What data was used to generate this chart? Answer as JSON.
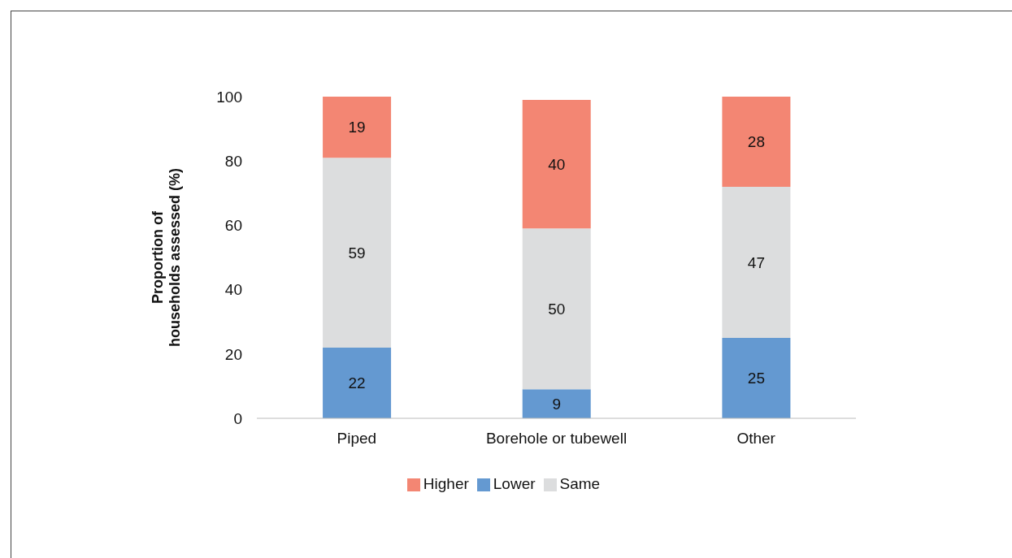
{
  "chart_data": {
    "type": "bar",
    "stacked": true,
    "ylabel": "Proportion of households assessed (%)",
    "categories": [
      "Piped",
      "Borehole or tubewell",
      "Other"
    ],
    "series": [
      {
        "name": "Lower",
        "color": "#6499d1",
        "values": [
          22,
          9,
          25
        ]
      },
      {
        "name": "Same",
        "color": "#dcddde",
        "values": [
          59,
          50,
          47
        ]
      },
      {
        "name": "Higher",
        "color": "#f38673",
        "values": [
          19,
          40,
          28
        ]
      }
    ],
    "ylim": [
      0,
      100
    ],
    "yticks": [
      0,
      20,
      40,
      60,
      80,
      100
    ],
    "data_labels": true,
    "grid": false,
    "legend": "bottom"
  }
}
